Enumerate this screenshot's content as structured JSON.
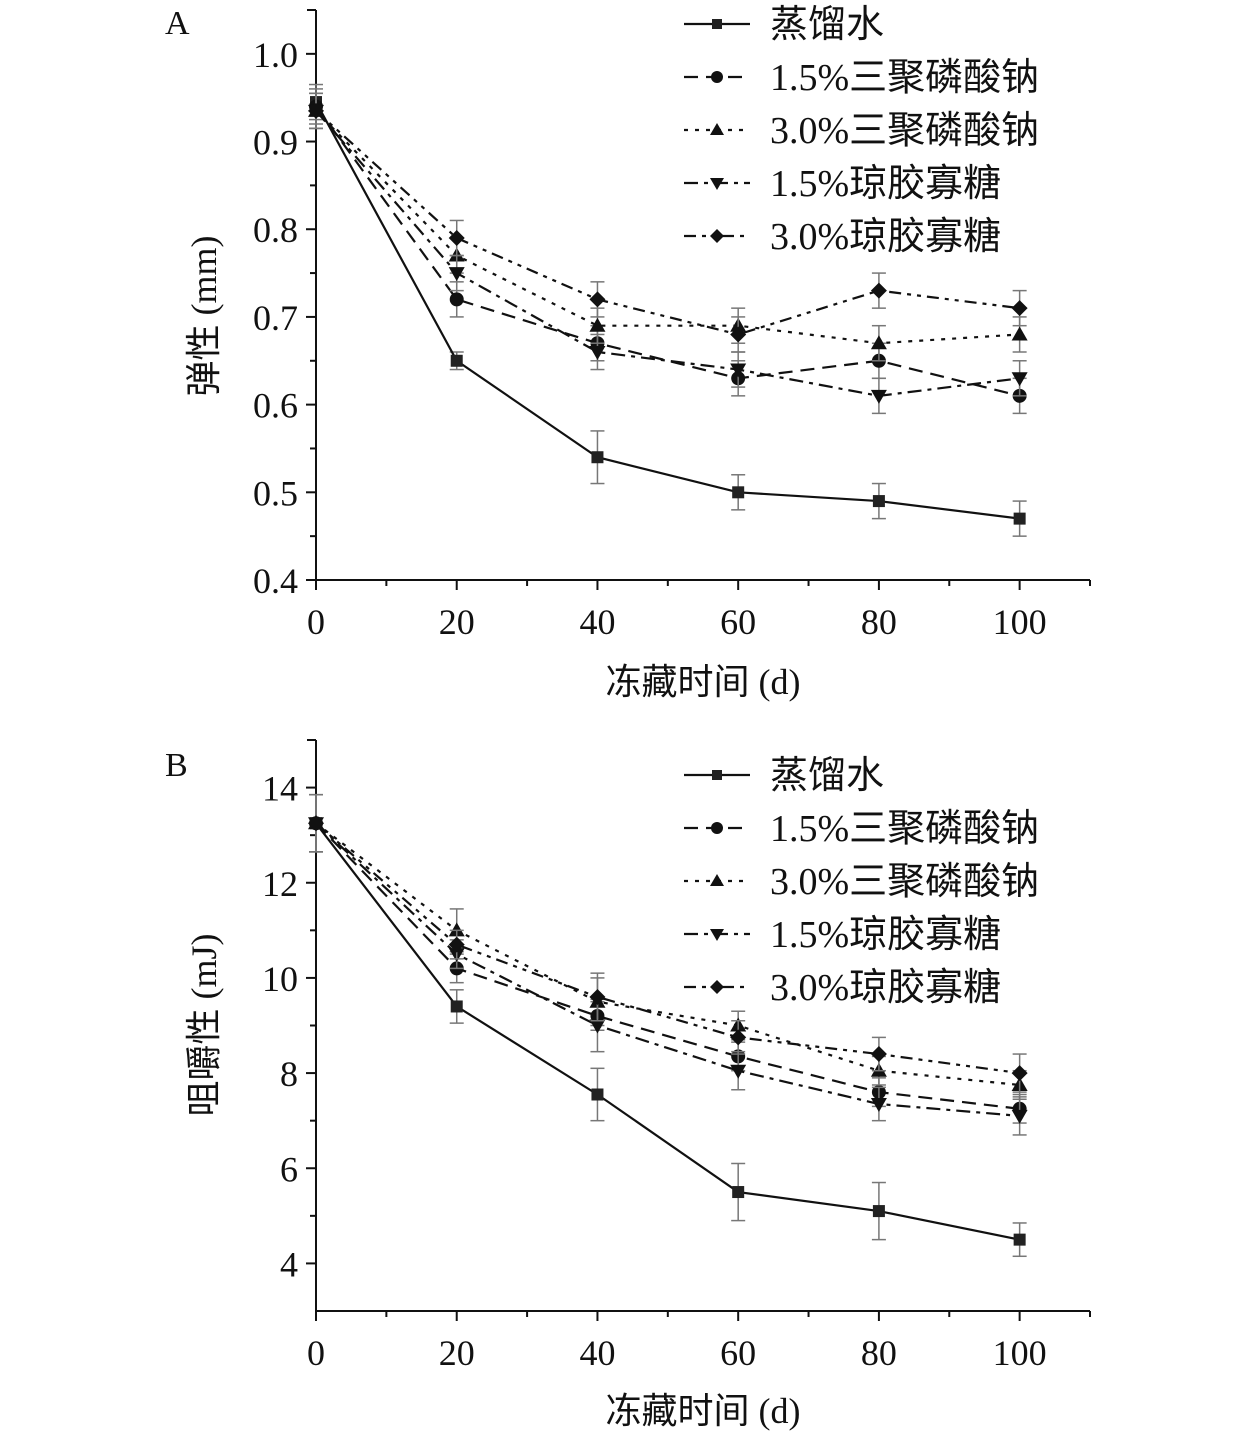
{
  "chart_data": [
    {
      "type": "line",
      "panel_label": "A",
      "xlabel": "冻藏时间 (d)",
      "ylabel": "弹性 (mm)",
      "xlim": [
        0,
        110
      ],
      "ylim": [
        0.4,
        1.05
      ],
      "xticks": [
        0,
        20,
        40,
        60,
        80,
        100
      ],
      "xtick_labels": [
        "0",
        "20",
        "40",
        "60",
        "80",
        "100"
      ],
      "yticks": [
        0.4,
        0.5,
        0.6,
        0.7,
        0.8,
        0.9,
        1.0
      ],
      "ytick_labels": [
        "0.4",
        "0.5",
        "0.6",
        "0.7",
        "0.8",
        "0.9",
        "1.0"
      ],
      "legend_position": "top-right",
      "x": [
        0,
        20,
        40,
        60,
        80,
        100
      ],
      "series": [
        {
          "name": "蒸馏水",
          "marker": "square",
          "dash": "solid",
          "values": [
            0.945,
            0.65,
            0.54,
            0.5,
            0.49,
            0.47
          ],
          "errors": [
            0.02,
            0.01,
            0.03,
            0.02,
            0.02,
            0.02
          ]
        },
        {
          "name": "1.5%三聚磷酸钠",
          "marker": "circle",
          "dash": "dashed",
          "values": [
            0.94,
            0.72,
            0.67,
            0.63,
            0.65,
            0.61
          ],
          "errors": [
            0.02,
            0.02,
            0.02,
            0.02,
            0.02,
            0.02
          ]
        },
        {
          "name": "3.0%三聚磷酸钠",
          "marker": "triangle-up",
          "dash": "dotted",
          "values": [
            0.935,
            0.77,
            0.69,
            0.69,
            0.67,
            0.68
          ],
          "errors": [
            0.02,
            0.02,
            0.02,
            0.02,
            0.02,
            0.02
          ]
        },
        {
          "name": "1.5%琼胶寡糖",
          "marker": "triangle-down",
          "dash": "dash-dot",
          "values": [
            0.935,
            0.75,
            0.66,
            0.64,
            0.61,
            0.63
          ],
          "errors": [
            0.02,
            0.02,
            0.02,
            0.02,
            0.02,
            0.02
          ]
        },
        {
          "name": "3.0%琼胶寡糖",
          "marker": "diamond",
          "dash": "dash-dot-dot",
          "values": [
            0.935,
            0.79,
            0.72,
            0.68,
            0.73,
            0.71
          ],
          "errors": [
            0.02,
            0.02,
            0.02,
            0.02,
            0.02,
            0.02
          ]
        }
      ]
    },
    {
      "type": "line",
      "panel_label": "B",
      "xlabel": "冻藏时间 (d)",
      "ylabel": "咀嚼性 (mJ)",
      "xlim": [
        0,
        110
      ],
      "ylim": [
        3,
        15
      ],
      "xticks": [
        0,
        20,
        40,
        60,
        80,
        100
      ],
      "xtick_labels": [
        "0",
        "20",
        "40",
        "60",
        "80",
        "100"
      ],
      "yticks": [
        4,
        6,
        8,
        10,
        12,
        14
      ],
      "ytick_labels": [
        "4",
        "6",
        "8",
        "10",
        "12",
        "14"
      ],
      "legend_position": "top-right",
      "x": [
        0,
        20,
        40,
        60,
        80,
        100
      ],
      "series": [
        {
          "name": "蒸馏水",
          "marker": "square",
          "dash": "solid",
          "values": [
            13.25,
            9.4,
            7.55,
            5.5,
            5.1,
            4.5
          ],
          "errors": [
            0.6,
            0.35,
            0.55,
            0.6,
            0.6,
            0.35
          ]
        },
        {
          "name": "1.5%三聚磷酸钠",
          "marker": "circle",
          "dash": "dashed",
          "values": [
            13.25,
            10.2,
            9.2,
            8.35,
            7.6,
            7.25
          ],
          "errors": [
            0.6,
            0.3,
            0.3,
            0.3,
            0.3,
            0.3
          ]
        },
        {
          "name": "3.0%三聚磷酸钠",
          "marker": "triangle-up",
          "dash": "dotted",
          "values": [
            13.25,
            11.0,
            9.5,
            9.0,
            8.05,
            7.75
          ],
          "errors": [
            0.6,
            0.45,
            0.5,
            0.3,
            0.3,
            0.3
          ]
        },
        {
          "name": "1.5%琼胶寡糖",
          "marker": "triangle-down",
          "dash": "dash-dot",
          "values": [
            13.25,
            10.5,
            9.0,
            8.05,
            7.35,
            7.1
          ],
          "errors": [
            0.6,
            0.3,
            0.55,
            0.4,
            0.35,
            0.4
          ]
        },
        {
          "name": "3.0%琼胶寡糖",
          "marker": "diamond",
          "dash": "dash-dot-dot",
          "values": [
            13.25,
            10.7,
            9.6,
            8.75,
            8.4,
            8.0
          ],
          "errors": [
            0.6,
            0.3,
            0.5,
            0.35,
            0.35,
            0.4
          ]
        }
      ]
    }
  ]
}
